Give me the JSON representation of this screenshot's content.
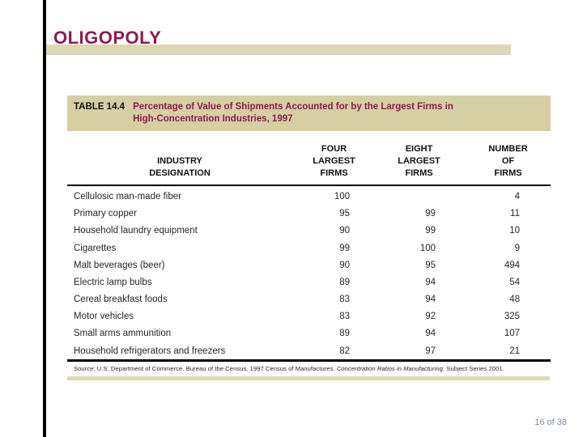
{
  "slide": {
    "title": "OLIGOPOLY",
    "page_indicator": "16 of 38"
  },
  "colors": {
    "accent_maroon": "#8E1B52",
    "tan_bar": "#DDD7B6",
    "table_caption_bg": "#D6CFA3",
    "page_indicator_text": "#7B8CA3",
    "left_bar": "#000000"
  },
  "table": {
    "label": "TABLE 14.4",
    "caption": "Percentage of Value of Shipments Accounted for by the Largest Firms in\nHigh-Concentration Industries, 1997",
    "columns": {
      "industry": "INDUSTRY\nDESIGNATION",
      "four": "FOUR\nLARGEST\nFIRMS",
      "eight": "EIGHT\nLARGEST\nFIRMS",
      "number": "NUMBER\nOF\nFIRMS"
    },
    "rows": [
      {
        "industry": "Cellulosic man-made fiber",
        "four": "100",
        "eight": "",
        "number": "4"
      },
      {
        "industry": "Primary copper",
        "four": "95",
        "eight": "99",
        "number": "11"
      },
      {
        "industry": "Household laundry equipment",
        "four": "90",
        "eight": "99",
        "number": "10"
      },
      {
        "industry": "Cigarettes",
        "four": "99",
        "eight": "100",
        "number": "9"
      },
      {
        "industry": "Malt beverages (beer)",
        "four": "90",
        "eight": "95",
        "number": "494"
      },
      {
        "industry": "Electric lamp bulbs",
        "four": "89",
        "eight": "94",
        "number": "54"
      },
      {
        "industry": "Cereal breakfast foods",
        "four": "83",
        "eight": "94",
        "number": "48"
      },
      {
        "industry": "Motor vehicles",
        "four": "83",
        "eight": "92",
        "number": "325"
      },
      {
        "industry": "Small arms ammunition",
        "four": "89",
        "eight": "94",
        "number": "107"
      },
      {
        "industry": "Household refrigerators and freezers",
        "four": "82",
        "eight": "97",
        "number": "21"
      }
    ],
    "source": {
      "label": "Source",
      "part1": ": U.S. Department of Commerce. Bureau of the Census. 1997 Census of Manufactures.  ",
      "italic_title": "Concentration Ratios in Manufacturing",
      "part2": ". Subject Series 2001."
    }
  }
}
